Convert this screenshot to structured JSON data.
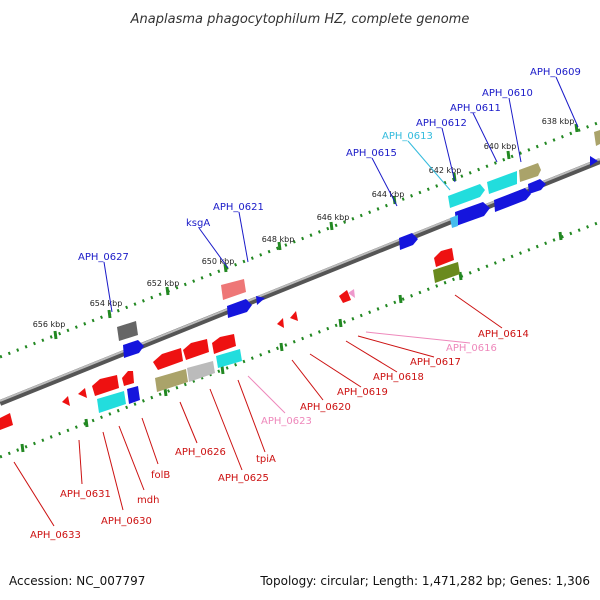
{
  "title": "Anaplasma phagocytophilum HZ, complete genome",
  "footer": {
    "accession": "Accession: NC_007797",
    "summary": "Topology: circular; Length: 1,471,282 bp; Genes: 1,306"
  },
  "colors": {
    "forward_label": "#1a1ac8",
    "reverse_label": "#cc1111",
    "pseudo_reverse_label": "#ee88bb",
    "cyan_label": "#33bbdd",
    "tick_mark": "#228822",
    "backbone": "#888888"
  },
  "tick_labels": [
    "638 kbp",
    "640 kbp",
    "642 kbp",
    "644 kbp",
    "646 kbp",
    "648 kbp",
    "650 kbp",
    "652 kbp",
    "654 kbp",
    "656 kbp"
  ],
  "forward_genes": [
    "APH_0609",
    "APH_0610",
    "APH_0611",
    "APH_0612",
    "APH_0613",
    "APH_0615",
    "APH_0621",
    "ksgA",
    "APH_0627"
  ],
  "reverse_genes": [
    "APH_0614",
    "APH_0616",
    "APH_0617",
    "APH_0618",
    "APH_0619",
    "APH_0620",
    "APH_0623",
    "tpiA",
    "APH_0625",
    "APH_0626",
    "folB",
    "mdh",
    "APH_0630",
    "APH_0631",
    "APH_0633"
  ]
}
